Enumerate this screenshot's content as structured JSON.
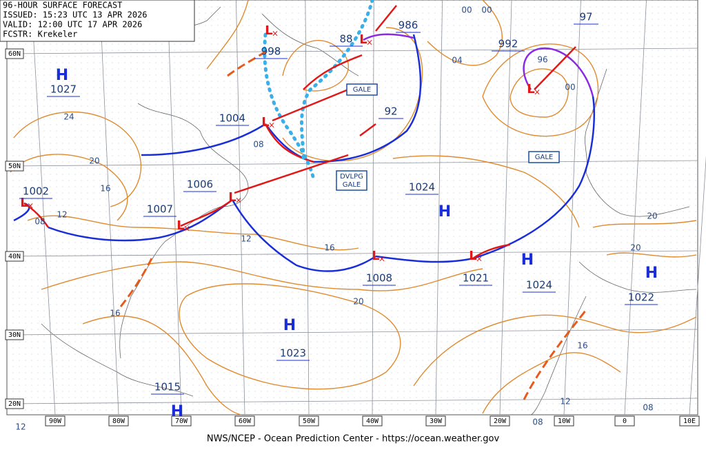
{
  "header": {
    "lines": [
      "96-HOUR SURFACE FORECAST",
      "ISSUED: 15:23 UTC 13 APR 2026",
      "VALID:  12:00 UTC 17 APR 2026",
      "FCSTR:  Krekeler"
    ]
  },
  "footer": "NWS/NCEP - Ocean Prediction Center - https://ocean.weather.gov",
  "latitude_labels": [
    "60N",
    "50N",
    "40N",
    "30N",
    "20N"
  ],
  "longitude_labels": [
    "90W",
    "80W",
    "70W",
    "60W",
    "50W",
    "40W",
    "30W",
    "20W",
    "10W",
    "0",
    "10E"
  ],
  "centers": [
    {
      "symbol": "H",
      "pressure": "1027"
    },
    {
      "symbol": "L",
      "pressure": "1004"
    },
    {
      "symbol": "L",
      "pressure": "1006"
    },
    {
      "symbol": "L",
      "pressure": "1007"
    },
    {
      "symbol": "L",
      "pressure": "1002"
    },
    {
      "symbol": "L",
      "pressure": "998"
    },
    {
      "symbol": "L",
      "pressure": "88"
    },
    {
      "symbol": "L",
      "pressure": "992"
    },
    {
      "symbol": "H",
      "pressure": "1024"
    },
    {
      "symbol": "L",
      "pressure": "1008"
    },
    {
      "symbol": "L",
      "pressure": "1021"
    },
    {
      "symbol": "H",
      "pressure": "1024"
    },
    {
      "symbol": "H",
      "pressure": "1022"
    },
    {
      "symbol": "H",
      "pressure": "1023"
    },
    {
      "symbol": "H",
      "pressure": "1015"
    }
  ],
  "pressure_labels": [
    "986",
    "97",
    "92"
  ],
  "isobar_labels": [
    "24",
    "20",
    "16",
    "12",
    "08",
    "12",
    "16",
    "20",
    "16",
    "16",
    "12",
    "08",
    "08",
    "20",
    "20",
    "04",
    "00",
    "00",
    "00",
    "96",
    "08",
    "12"
  ],
  "warnings": [
    {
      "lines": [
        "GALE"
      ]
    },
    {
      "lines": [
        "GALE"
      ]
    },
    {
      "lines": [
        "DVLPG",
        "GALE"
      ]
    }
  ]
}
